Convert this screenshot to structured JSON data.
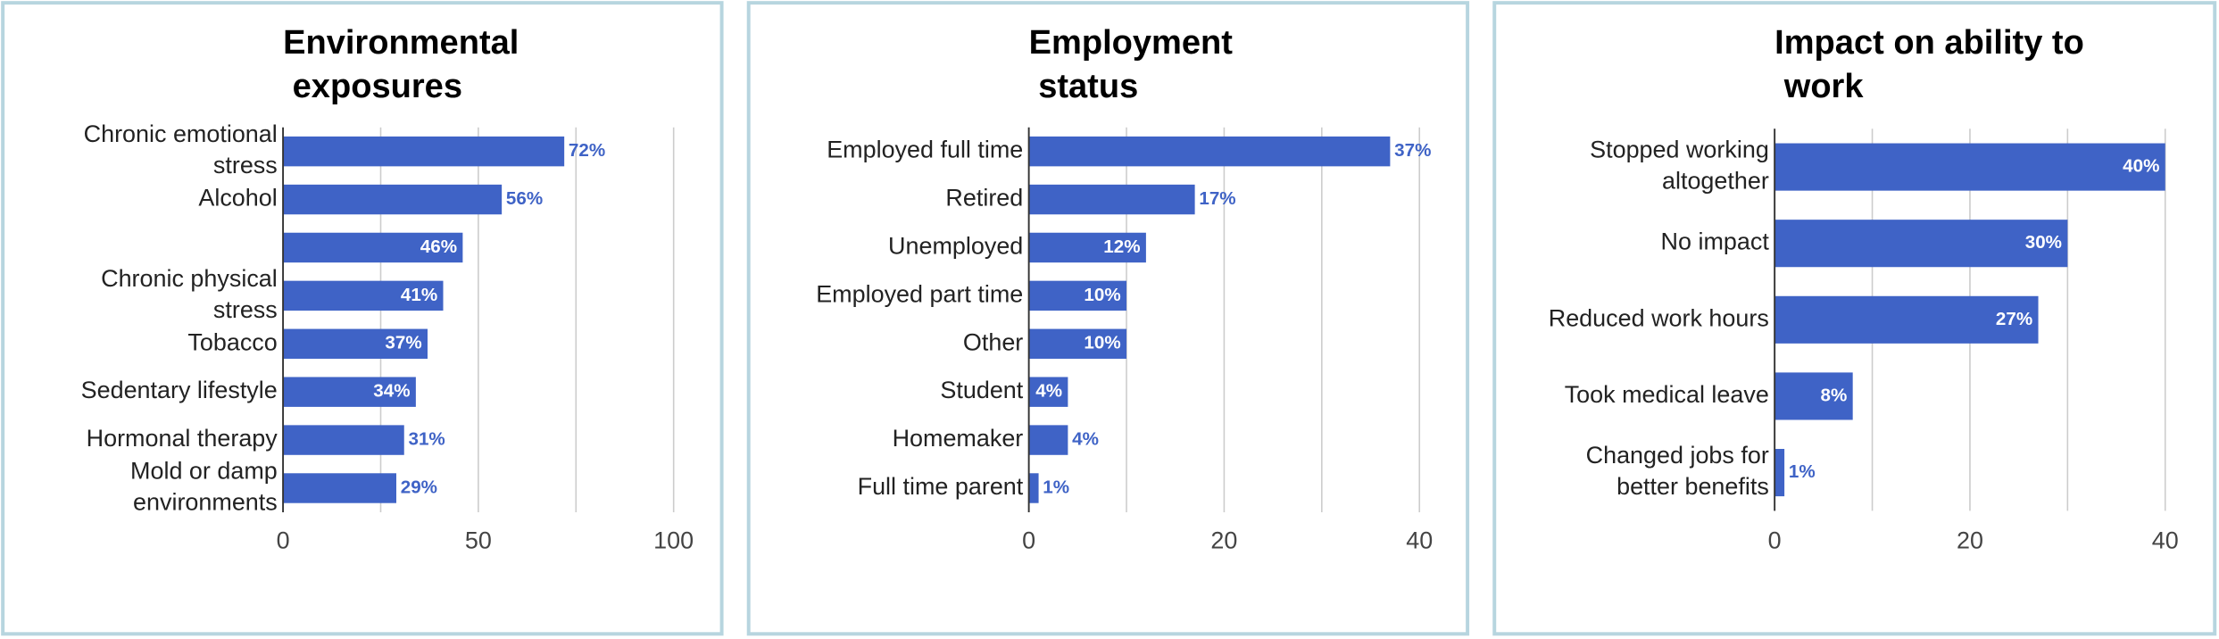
{
  "chart_data": [
    {
      "type": "bar",
      "orientation": "horizontal",
      "title": "Environmental exposures",
      "categories": [
        "Chronic emotional stress",
        "Alcohol",
        null,
        "Chronic physical stress",
        "Tobacco",
        "Sedentary lifestyle",
        "Hormonal therapy",
        "Mold or damp environments"
      ],
      "values": [
        72,
        56,
        46,
        41,
        37,
        34,
        31,
        29
      ],
      "value_labels": [
        "72%",
        "56%",
        "46%",
        "41%",
        "37%",
        "34%",
        "31%",
        "29%"
      ],
      "value_label_position": [
        "outside",
        "outside",
        "inside",
        "inside",
        "inside",
        "inside",
        "outside",
        "outside"
      ],
      "color": "#3f63c6",
      "xlim": [
        0,
        100
      ],
      "xticks": [
        0,
        50,
        100
      ],
      "minor_xticks": [
        25,
        75
      ],
      "grid": true
    },
    {
      "type": "bar",
      "orientation": "horizontal",
      "title": "Employment status",
      "categories": [
        "Employed full time",
        "Retired",
        "Unemployed",
        "Employed part time",
        "Other",
        "Student",
        "Homemaker",
        "Full time parent"
      ],
      "values": [
        37,
        17,
        12,
        10,
        10,
        4,
        4,
        1
      ],
      "value_labels": [
        "37%",
        "17%",
        "12%",
        "10%",
        "10%",
        "4%",
        "4%",
        "1%"
      ],
      "value_label_position": [
        "outside",
        "outside",
        "inside",
        "inside",
        "inside",
        "inside",
        "outside",
        "outside"
      ],
      "color": "#3f63c6",
      "xlim": [
        0,
        40
      ],
      "xticks": [
        0,
        20,
        40
      ],
      "minor_xticks": [
        10,
        30
      ],
      "grid": true
    },
    {
      "type": "bar",
      "orientation": "horizontal",
      "title": "Impact on ability to work",
      "categories": [
        "Stopped working altogether",
        "No impact",
        "Reduced work hours",
        "Took medical leave",
        "Changed jobs for better benefits"
      ],
      "values": [
        40,
        30,
        27,
        8,
        1
      ],
      "value_labels": [
        "40%",
        "30%",
        "27%",
        "8%",
        "1%"
      ],
      "value_label_position": [
        "inside",
        "inside",
        "inside",
        "inside",
        "outside"
      ],
      "color": "#3f63c6",
      "xlim": [
        0,
        40
      ],
      "xticks": [
        0,
        20,
        40
      ],
      "minor_xticks": [
        10,
        30
      ],
      "grid": true
    }
  ]
}
